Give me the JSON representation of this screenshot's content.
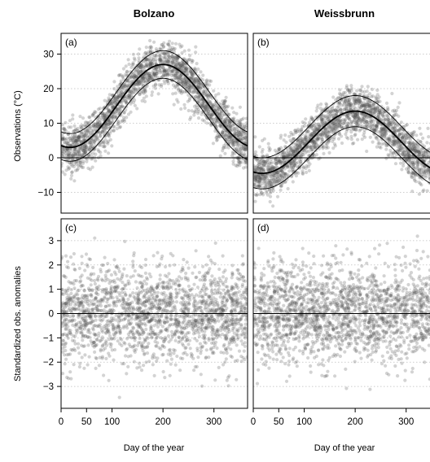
{
  "chart_data": [
    {
      "id": "a",
      "type": "scatter",
      "panel_label": "(a)",
      "column_title": "Bolzano",
      "ylabel": "Observations (°C)",
      "xlim": [
        0,
        366
      ],
      "ylim": [
        -16,
        36
      ],
      "yticks": [
        -10,
        0,
        10,
        20,
        30
      ],
      "grid": true,
      "curves": {
        "mean": {
          "offset": 15.0,
          "amplitude": 12.0,
          "peak_day": 200
        },
        "band_halfwidth": 4.0
      },
      "scatter": {
        "n": 2200,
        "sd": 3.6,
        "clip": [
          -10,
          34
        ]
      },
      "reference_line": 0
    },
    {
      "id": "b",
      "type": "scatter",
      "panel_label": "(b)",
      "column_title": "Weissbrunn",
      "xlim": [
        0,
        366
      ],
      "ylim": [
        -16,
        36
      ],
      "yticks": [
        -10,
        0,
        10,
        20,
        30
      ],
      "grid": true,
      "curves": {
        "mean": {
          "offset": 4.5,
          "amplitude": 9.0,
          "peak_day": 200
        },
        "band_halfwidth": 4.5
      },
      "scatter": {
        "n": 2200,
        "sd": 3.6,
        "clip": [
          -15,
          21
        ]
      },
      "reference_line": 0
    },
    {
      "id": "c",
      "type": "scatter",
      "panel_label": "(c)",
      "ylabel": "Standardized obs. anomalies",
      "xlabel": "Day of the year",
      "xlim": [
        0,
        366
      ],
      "ylim": [
        -3.9,
        3.9
      ],
      "yticks": [
        -3,
        -2,
        -1,
        0,
        1,
        2,
        3
      ],
      "xticks": [
        0,
        50,
        100,
        200,
        300
      ],
      "grid": true,
      "scatter": {
        "n": 2000,
        "sd": 1.0,
        "clip": [
          -3.5,
          3.5
        ]
      },
      "reference_line": 0
    },
    {
      "id": "d",
      "type": "scatter",
      "panel_label": "(d)",
      "xlabel": "Day of the year",
      "xlim": [
        0,
        366
      ],
      "ylim": [
        -3.9,
        3.9
      ],
      "yticks": [
        -3,
        -2,
        -1,
        0,
        1,
        2,
        3
      ],
      "xticks": [
        0,
        50,
        100,
        200,
        300
      ],
      "grid": true,
      "scatter": {
        "n": 2000,
        "sd": 1.0,
        "clip": [
          -3.5,
          3.5
        ]
      },
      "reference_line": 0
    }
  ]
}
